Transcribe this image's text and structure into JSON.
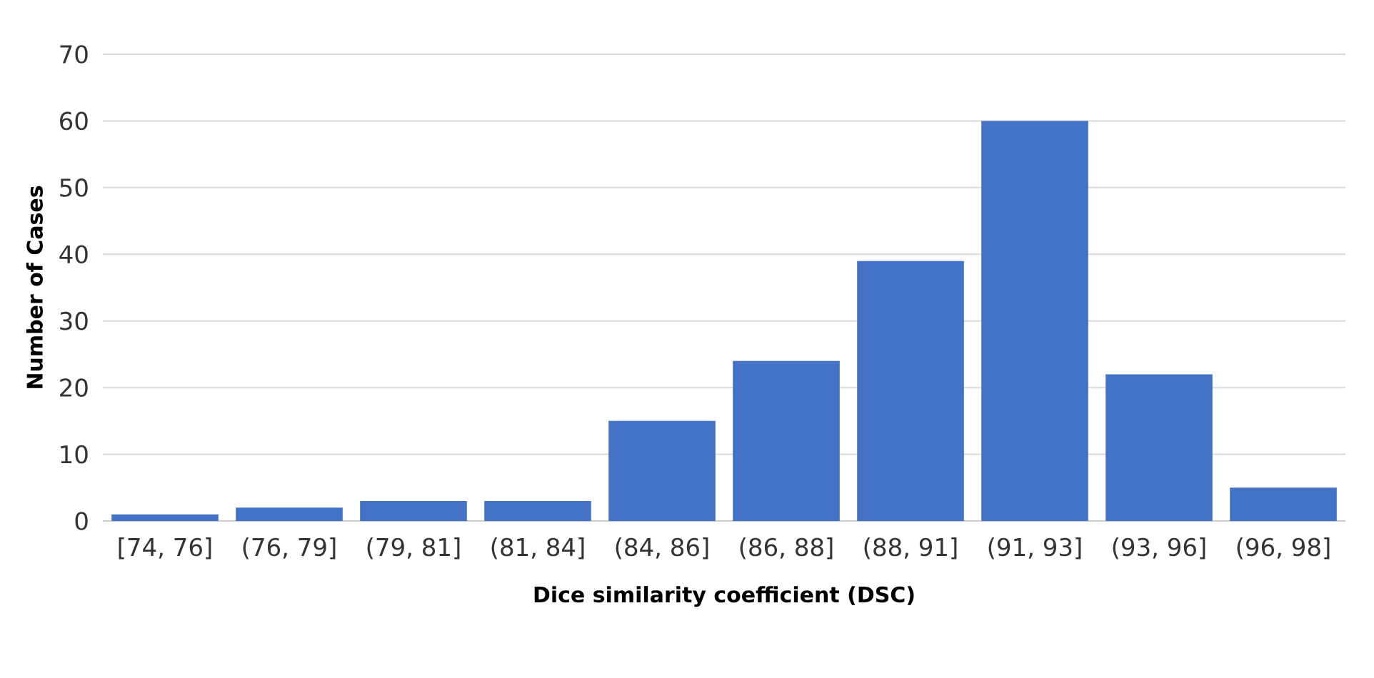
{
  "chart_data": {
    "type": "bar",
    "xlabel": "Dice similarity coefficient (DSC)",
    "ylabel": "Number of Cases",
    "categories": [
      "[74, 76]",
      "(76, 79]",
      "(79, 81]",
      "(81, 84]",
      "(84, 86]",
      "(86, 88]",
      "(88, 91]",
      "(91, 93]",
      "(93, 96]",
      "(96, 98]"
    ],
    "values": [
      1,
      2,
      3,
      3,
      15,
      24,
      39,
      60,
      22,
      5
    ],
    "color": "#4472c4",
    "ylim": [
      0,
      70
    ],
    "yticks": [
      0,
      10,
      20,
      30,
      40,
      50,
      60,
      70
    ],
    "grid": "y"
  }
}
